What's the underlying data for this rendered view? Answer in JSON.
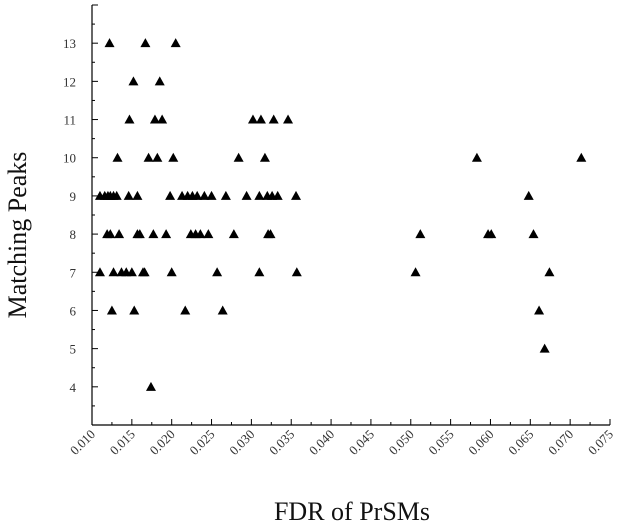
{
  "chart_data": {
    "type": "scatter",
    "title": "",
    "xlabel": "FDR of PrSMs",
    "ylabel": "Matching Peaks",
    "xlim": [
      0.01,
      0.075
    ],
    "ylim": [
      3,
      14
    ],
    "x_ticks": [
      0.01,
      0.015,
      0.02,
      0.025,
      0.03,
      0.035,
      0.04,
      0.045,
      0.05,
      0.055,
      0.06,
      0.065,
      0.07,
      0.075
    ],
    "x_tick_labels": [
      "0.010",
      "0.015",
      "0.020",
      "0.025",
      "0.030",
      "0.035",
      "0.040",
      "0.045",
      "0.050",
      "0.055",
      "0.060",
      "0.065",
      "0.070",
      "0.075"
    ],
    "y_ticks": [
      4,
      5,
      6,
      7,
      8,
      9,
      10,
      11,
      12,
      13
    ],
    "y_tick_labels": [
      "4",
      "5",
      "6",
      "7",
      "8",
      "9",
      "10",
      "11",
      "12",
      "13"
    ],
    "marker": "triangle",
    "marker_color": "#000000",
    "grid": false,
    "legend": "none",
    "series": [
      {
        "points": [
          [
            0.0122,
            13
          ],
          [
            0.0167,
            13
          ],
          [
            0.0205,
            13
          ],
          [
            0.0152,
            12
          ],
          [
            0.0185,
            12
          ],
          [
            0.0147,
            11
          ],
          [
            0.0179,
            11
          ],
          [
            0.0188,
            11
          ],
          [
            0.0302,
            11
          ],
          [
            0.0312,
            11
          ],
          [
            0.0328,
            11
          ],
          [
            0.0346,
            11
          ],
          [
            0.0132,
            10
          ],
          [
            0.0171,
            10
          ],
          [
            0.0182,
            10
          ],
          [
            0.0202,
            10
          ],
          [
            0.0284,
            10
          ],
          [
            0.0317,
            10
          ],
          [
            0.0583,
            10
          ],
          [
            0.0714,
            10
          ],
          [
            0.011,
            9
          ],
          [
            0.0116,
            9
          ],
          [
            0.012,
            9
          ],
          [
            0.0123,
            9
          ],
          [
            0.0127,
            9
          ],
          [
            0.0131,
            9
          ],
          [
            0.0146,
            9
          ],
          [
            0.0157,
            9
          ],
          [
            0.0198,
            9
          ],
          [
            0.0213,
            9
          ],
          [
            0.022,
            9
          ],
          [
            0.0226,
            9
          ],
          [
            0.0232,
            9
          ],
          [
            0.0241,
            9
          ],
          [
            0.025,
            9
          ],
          [
            0.0268,
            9
          ],
          [
            0.0294,
            9
          ],
          [
            0.031,
            9
          ],
          [
            0.032,
            9
          ],
          [
            0.0326,
            9
          ],
          [
            0.0333,
            9
          ],
          [
            0.0356,
            9
          ],
          [
            0.0648,
            9
          ],
          [
            0.0119,
            8
          ],
          [
            0.0123,
            8
          ],
          [
            0.0134,
            8
          ],
          [
            0.0157,
            8
          ],
          [
            0.016,
            8
          ],
          [
            0.0177,
            8
          ],
          [
            0.0193,
            8
          ],
          [
            0.0224,
            8
          ],
          [
            0.023,
            8
          ],
          [
            0.0236,
            8
          ],
          [
            0.0246,
            8
          ],
          [
            0.0278,
            8
          ],
          [
            0.0321,
            8
          ],
          [
            0.0324,
            8
          ],
          [
            0.0512,
            8
          ],
          [
            0.0597,
            8
          ],
          [
            0.0601,
            8
          ],
          [
            0.0654,
            8
          ],
          [
            0.011,
            7
          ],
          [
            0.0127,
            7
          ],
          [
            0.0137,
            7
          ],
          [
            0.0143,
            7
          ],
          [
            0.015,
            7
          ],
          [
            0.0164,
            7
          ],
          [
            0.0166,
            7
          ],
          [
            0.02,
            7
          ],
          [
            0.0257,
            7
          ],
          [
            0.031,
            7
          ],
          [
            0.0357,
            7
          ],
          [
            0.0506,
            7
          ],
          [
            0.0674,
            7
          ],
          [
            0.0125,
            6
          ],
          [
            0.0153,
            6
          ],
          [
            0.0217,
            6
          ],
          [
            0.0264,
            6
          ],
          [
            0.0661,
            6
          ],
          [
            0.0668,
            5
          ],
          [
            0.0174,
            4
          ]
        ]
      }
    ]
  }
}
